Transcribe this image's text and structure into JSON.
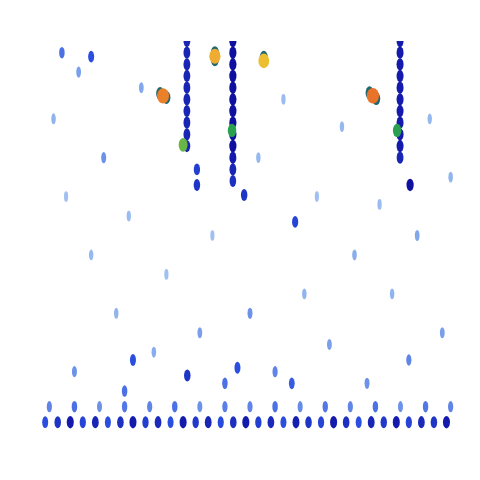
{
  "chart_data": {
    "type": "heatmap",
    "xlim": [
      0,
      100
    ],
    "ylim": [
      0,
      100
    ],
    "tick_labels": false,
    "color_range": [
      0,
      1
    ],
    "cells": [
      [
        3,
        80,
        0.15
      ],
      [
        6,
        60,
        0.12
      ],
      [
        9,
        92,
        0.18
      ],
      [
        12,
        45,
        0.14
      ],
      [
        15,
        70,
        0.2
      ],
      [
        18,
        30,
        0.15
      ],
      [
        21,
        55,
        0.13
      ],
      [
        24,
        88,
        0.17
      ],
      [
        27,
        20,
        0.16
      ],
      [
        30,
        40,
        0.12
      ],
      [
        38,
        25,
        0.18
      ],
      [
        41,
        50,
        0.12
      ],
      [
        50,
        30,
        0.2
      ],
      [
        52,
        70,
        0.14
      ],
      [
        56,
        15,
        0.22
      ],
      [
        58,
        85,
        0.13
      ],
      [
        63,
        35,
        0.15
      ],
      [
        66,
        60,
        0.12
      ],
      [
        69,
        22,
        0.18
      ],
      [
        72,
        78,
        0.14
      ],
      [
        75,
        45,
        0.16
      ],
      [
        78,
        12,
        0.2
      ],
      [
        81,
        58,
        0.13
      ],
      [
        84,
        35,
        0.15
      ],
      [
        90,
        50,
        0.17
      ],
      [
        93,
        80,
        0.14
      ],
      [
        96,
        25,
        0.18
      ],
      [
        98,
        65,
        0.15
      ],
      [
        8,
        15,
        0.2
      ],
      [
        44,
        12,
        0.25
      ],
      [
        20,
        10,
        0.25
      ],
      [
        88,
        18,
        0.22
      ],
      [
        12,
        96,
        0.3
      ],
      [
        5,
        97,
        0.25
      ],
      [
        22,
        18,
        0.3
      ],
      [
        47,
        16,
        0.3
      ],
      [
        35,
        14,
        0.35
      ],
      [
        60,
        12,
        0.28
      ],
      [
        2,
        6,
        0.22
      ],
      [
        8,
        6,
        0.25
      ],
      [
        14,
        6,
        0.2
      ],
      [
        20,
        6,
        0.24
      ],
      [
        26,
        6,
        0.22
      ],
      [
        32,
        6,
        0.25
      ],
      [
        38,
        6,
        0.2
      ],
      [
        44,
        6,
        0.23
      ],
      [
        50,
        6,
        0.22
      ],
      [
        56,
        6,
        0.25
      ],
      [
        62,
        6,
        0.21
      ],
      [
        68,
        6,
        0.24
      ],
      [
        74,
        6,
        0.22
      ],
      [
        80,
        6,
        0.25
      ],
      [
        86,
        6,
        0.2
      ],
      [
        92,
        6,
        0.24
      ],
      [
        98,
        6,
        0.22
      ],
      [
        1,
        2,
        0.3
      ],
      [
        4,
        2,
        0.35
      ],
      [
        7,
        2,
        0.4
      ],
      [
        10,
        2,
        0.32
      ],
      [
        13,
        2,
        0.38
      ],
      [
        16,
        2,
        0.3
      ],
      [
        19,
        2,
        0.36
      ],
      [
        22,
        2,
        0.4
      ],
      [
        25,
        2,
        0.33
      ],
      [
        28,
        2,
        0.37
      ],
      [
        31,
        2,
        0.3
      ],
      [
        34,
        2,
        0.4
      ],
      [
        37,
        2,
        0.34
      ],
      [
        40,
        2,
        0.38
      ],
      [
        43,
        2,
        0.31
      ],
      [
        46,
        2,
        0.36
      ],
      [
        49,
        2,
        0.4
      ],
      [
        52,
        2,
        0.33
      ],
      [
        55,
        2,
        0.37
      ],
      [
        58,
        2,
        0.3
      ],
      [
        61,
        2,
        0.39
      ],
      [
        64,
        2,
        0.35
      ],
      [
        67,
        2,
        0.32
      ],
      [
        70,
        2,
        0.4
      ],
      [
        73,
        2,
        0.36
      ],
      [
        76,
        2,
        0.3
      ],
      [
        79,
        2,
        0.38
      ],
      [
        82,
        2,
        0.34
      ],
      [
        85,
        2,
        0.4
      ],
      [
        88,
        2,
        0.32
      ],
      [
        91,
        2,
        0.37
      ],
      [
        94,
        2,
        0.35
      ],
      [
        97,
        2,
        0.4
      ],
      [
        34.9,
        100,
        0.38
      ],
      [
        34.9,
        97,
        0.38
      ],
      [
        34.9,
        94,
        0.38
      ],
      [
        34.9,
        91,
        0.38
      ],
      [
        34.9,
        88,
        0.38
      ],
      [
        34.9,
        85,
        0.38
      ],
      [
        34.9,
        82,
        0.38
      ],
      [
        34.9,
        79,
        0.38
      ],
      [
        34.9,
        76,
        0.38
      ],
      [
        34.9,
        73,
        0.38
      ],
      [
        45.9,
        100,
        0.42
      ],
      [
        45.9,
        97,
        0.42
      ],
      [
        45.9,
        94,
        0.42
      ],
      [
        45.9,
        91,
        0.42
      ],
      [
        45.9,
        88,
        0.42
      ],
      [
        45.9,
        85,
        0.42
      ],
      [
        45.9,
        82,
        0.42
      ],
      [
        45.9,
        79,
        0.42
      ],
      [
        45.9,
        76,
        0.42
      ],
      [
        45.9,
        73,
        0.42
      ],
      [
        45.9,
        70,
        0.4
      ],
      [
        45.9,
        67,
        0.38
      ],
      [
        45.9,
        64,
        0.36
      ],
      [
        85.9,
        100,
        0.4
      ],
      [
        85.9,
        97,
        0.4
      ],
      [
        85.9,
        94,
        0.4
      ],
      [
        85.9,
        91,
        0.4
      ],
      [
        85.9,
        88,
        0.4
      ],
      [
        85.9,
        85,
        0.4
      ],
      [
        85.9,
        82,
        0.4
      ],
      [
        85.9,
        79,
        0.4
      ],
      [
        85.9,
        76,
        0.4
      ],
      [
        85.9,
        73,
        0.4
      ],
      [
        85.9,
        70,
        0.38
      ],
      [
        37.3,
        63,
        0.35
      ],
      [
        37.3,
        67,
        0.33
      ],
      [
        48.6,
        60.4,
        0.35
      ],
      [
        60.8,
        53.5,
        0.32
      ],
      [
        88.3,
        63,
        0.42
      ],
      [
        34,
        73.3,
        0.6
      ],
      [
        85.2,
        77,
        0.55
      ],
      [
        45.7,
        77,
        0.55
      ],
      [
        28.5,
        86.5,
        0.5
      ],
      [
        30,
        85.5,
        0.5
      ],
      [
        41.6,
        97,
        0.5
      ],
      [
        41.6,
        95.2,
        0.5
      ],
      [
        53.3,
        95.8,
        0.5
      ],
      [
        78.6,
        86.7,
        0.5
      ],
      [
        80.2,
        85.2,
        0.5
      ],
      [
        29.2,
        85.9,
        0.9
      ],
      [
        41.6,
        96.1,
        0.82
      ],
      [
        53.3,
        94.9,
        0.78
      ],
      [
        79.4,
        85.9,
        0.92
      ]
    ]
  }
}
